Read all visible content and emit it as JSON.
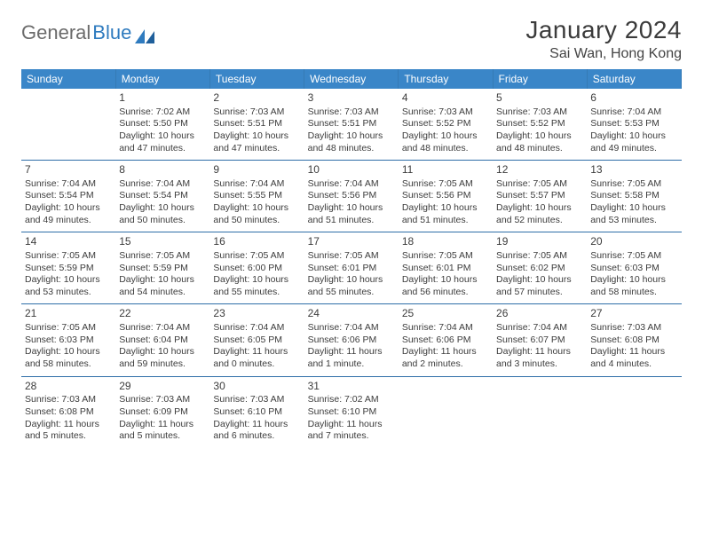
{
  "logo": {
    "text1": "General",
    "text2": "Blue"
  },
  "title": "January 2024",
  "location": "Sai Wan, Hong Kong",
  "colors": {
    "headerBg": "#3a86c8",
    "rowBorder": "#2f6ea8",
    "logoGray": "#6b6b6b",
    "logoBlue": "#2f7bbf",
    "text": "#3c3c3c"
  },
  "weekdays": [
    "Sunday",
    "Monday",
    "Tuesday",
    "Wednesday",
    "Thursday",
    "Friday",
    "Saturday"
  ],
  "weeks": [
    [
      null,
      {
        "n": "1",
        "sr": "Sunrise: 7:02 AM",
        "ss": "Sunset: 5:50 PM",
        "d1": "Daylight: 10 hours",
        "d2": "and 47 minutes."
      },
      {
        "n": "2",
        "sr": "Sunrise: 7:03 AM",
        "ss": "Sunset: 5:51 PM",
        "d1": "Daylight: 10 hours",
        "d2": "and 47 minutes."
      },
      {
        "n": "3",
        "sr": "Sunrise: 7:03 AM",
        "ss": "Sunset: 5:51 PM",
        "d1": "Daylight: 10 hours",
        "d2": "and 48 minutes."
      },
      {
        "n": "4",
        "sr": "Sunrise: 7:03 AM",
        "ss": "Sunset: 5:52 PM",
        "d1": "Daylight: 10 hours",
        "d2": "and 48 minutes."
      },
      {
        "n": "5",
        "sr": "Sunrise: 7:03 AM",
        "ss": "Sunset: 5:52 PM",
        "d1": "Daylight: 10 hours",
        "d2": "and 48 minutes."
      },
      {
        "n": "6",
        "sr": "Sunrise: 7:04 AM",
        "ss": "Sunset: 5:53 PM",
        "d1": "Daylight: 10 hours",
        "d2": "and 49 minutes."
      }
    ],
    [
      {
        "n": "7",
        "sr": "Sunrise: 7:04 AM",
        "ss": "Sunset: 5:54 PM",
        "d1": "Daylight: 10 hours",
        "d2": "and 49 minutes."
      },
      {
        "n": "8",
        "sr": "Sunrise: 7:04 AM",
        "ss": "Sunset: 5:54 PM",
        "d1": "Daylight: 10 hours",
        "d2": "and 50 minutes."
      },
      {
        "n": "9",
        "sr": "Sunrise: 7:04 AM",
        "ss": "Sunset: 5:55 PM",
        "d1": "Daylight: 10 hours",
        "d2": "and 50 minutes."
      },
      {
        "n": "10",
        "sr": "Sunrise: 7:04 AM",
        "ss": "Sunset: 5:56 PM",
        "d1": "Daylight: 10 hours",
        "d2": "and 51 minutes."
      },
      {
        "n": "11",
        "sr": "Sunrise: 7:05 AM",
        "ss": "Sunset: 5:56 PM",
        "d1": "Daylight: 10 hours",
        "d2": "and 51 minutes."
      },
      {
        "n": "12",
        "sr": "Sunrise: 7:05 AM",
        "ss": "Sunset: 5:57 PM",
        "d1": "Daylight: 10 hours",
        "d2": "and 52 minutes."
      },
      {
        "n": "13",
        "sr": "Sunrise: 7:05 AM",
        "ss": "Sunset: 5:58 PM",
        "d1": "Daylight: 10 hours",
        "d2": "and 53 minutes."
      }
    ],
    [
      {
        "n": "14",
        "sr": "Sunrise: 7:05 AM",
        "ss": "Sunset: 5:59 PM",
        "d1": "Daylight: 10 hours",
        "d2": "and 53 minutes."
      },
      {
        "n": "15",
        "sr": "Sunrise: 7:05 AM",
        "ss": "Sunset: 5:59 PM",
        "d1": "Daylight: 10 hours",
        "d2": "and 54 minutes."
      },
      {
        "n": "16",
        "sr": "Sunrise: 7:05 AM",
        "ss": "Sunset: 6:00 PM",
        "d1": "Daylight: 10 hours",
        "d2": "and 55 minutes."
      },
      {
        "n": "17",
        "sr": "Sunrise: 7:05 AM",
        "ss": "Sunset: 6:01 PM",
        "d1": "Daylight: 10 hours",
        "d2": "and 55 minutes."
      },
      {
        "n": "18",
        "sr": "Sunrise: 7:05 AM",
        "ss": "Sunset: 6:01 PM",
        "d1": "Daylight: 10 hours",
        "d2": "and 56 minutes."
      },
      {
        "n": "19",
        "sr": "Sunrise: 7:05 AM",
        "ss": "Sunset: 6:02 PM",
        "d1": "Daylight: 10 hours",
        "d2": "and 57 minutes."
      },
      {
        "n": "20",
        "sr": "Sunrise: 7:05 AM",
        "ss": "Sunset: 6:03 PM",
        "d1": "Daylight: 10 hours",
        "d2": "and 58 minutes."
      }
    ],
    [
      {
        "n": "21",
        "sr": "Sunrise: 7:05 AM",
        "ss": "Sunset: 6:03 PM",
        "d1": "Daylight: 10 hours",
        "d2": "and 58 minutes."
      },
      {
        "n": "22",
        "sr": "Sunrise: 7:04 AM",
        "ss": "Sunset: 6:04 PM",
        "d1": "Daylight: 10 hours",
        "d2": "and 59 minutes."
      },
      {
        "n": "23",
        "sr": "Sunrise: 7:04 AM",
        "ss": "Sunset: 6:05 PM",
        "d1": "Daylight: 11 hours",
        "d2": "and 0 minutes."
      },
      {
        "n": "24",
        "sr": "Sunrise: 7:04 AM",
        "ss": "Sunset: 6:06 PM",
        "d1": "Daylight: 11 hours",
        "d2": "and 1 minute."
      },
      {
        "n": "25",
        "sr": "Sunrise: 7:04 AM",
        "ss": "Sunset: 6:06 PM",
        "d1": "Daylight: 11 hours",
        "d2": "and 2 minutes."
      },
      {
        "n": "26",
        "sr": "Sunrise: 7:04 AM",
        "ss": "Sunset: 6:07 PM",
        "d1": "Daylight: 11 hours",
        "d2": "and 3 minutes."
      },
      {
        "n": "27",
        "sr": "Sunrise: 7:03 AM",
        "ss": "Sunset: 6:08 PM",
        "d1": "Daylight: 11 hours",
        "d2": "and 4 minutes."
      }
    ],
    [
      {
        "n": "28",
        "sr": "Sunrise: 7:03 AM",
        "ss": "Sunset: 6:08 PM",
        "d1": "Daylight: 11 hours",
        "d2": "and 5 minutes."
      },
      {
        "n": "29",
        "sr": "Sunrise: 7:03 AM",
        "ss": "Sunset: 6:09 PM",
        "d1": "Daylight: 11 hours",
        "d2": "and 5 minutes."
      },
      {
        "n": "30",
        "sr": "Sunrise: 7:03 AM",
        "ss": "Sunset: 6:10 PM",
        "d1": "Daylight: 11 hours",
        "d2": "and 6 minutes."
      },
      {
        "n": "31",
        "sr": "Sunrise: 7:02 AM",
        "ss": "Sunset: 6:10 PM",
        "d1": "Daylight: 11 hours",
        "d2": "and 7 minutes."
      },
      null,
      null,
      null
    ]
  ]
}
